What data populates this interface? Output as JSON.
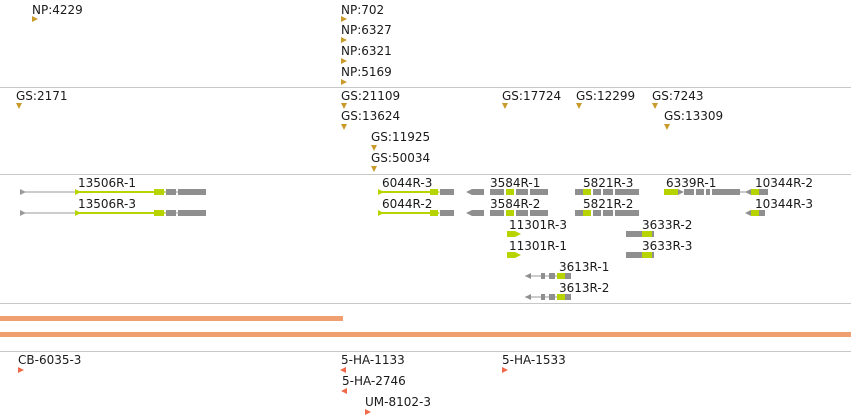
{
  "colors": {
    "np_marker": "#c89b2a",
    "gs_marker": "#c89b2a",
    "ha_marker": "#f06a4a",
    "gene_line": "#9a9a9a",
    "gene_green": "#b7d400",
    "gene_grey": "#8f8f8f",
    "bar": "#f0a070",
    "divider": "#c8c8c8"
  },
  "np_track": {
    "items": [
      {
        "label": "NP:4229"
      },
      {
        "label": "NP:702"
      },
      {
        "label": "NP:6327"
      },
      {
        "label": "NP:6321"
      },
      {
        "label": "NP:5169"
      }
    ]
  },
  "gs_track": {
    "items": [
      {
        "label": "GS:2171"
      },
      {
        "label": "GS:21109"
      },
      {
        "label": "GS:13624"
      },
      {
        "label": "GS:11925"
      },
      {
        "label": "GS:50034"
      },
      {
        "label": "GS:17724"
      },
      {
        "label": "GS:12299"
      },
      {
        "label": "GS:7243"
      },
      {
        "label": "GS:13309"
      }
    ]
  },
  "gene_track": {
    "genes": [
      {
        "label": "13506R-1"
      },
      {
        "label": "13506R-3"
      },
      {
        "label": "6044R-3"
      },
      {
        "label": "6044R-2"
      },
      {
        "label": "3584R-1"
      },
      {
        "label": "3584R-2"
      },
      {
        "label": "11301R-3"
      },
      {
        "label": "11301R-1"
      },
      {
        "label": "3613R-1"
      },
      {
        "label": "3613R-2"
      },
      {
        "label": "5821R-3"
      },
      {
        "label": "5821R-2"
      },
      {
        "label": "3633R-2"
      },
      {
        "label": "3633R-3"
      },
      {
        "label": "6339R-1"
      },
      {
        "label": "10344R-2"
      },
      {
        "label": "10344R-3"
      }
    ]
  },
  "ha_track": {
    "items": [
      {
        "label": "CB-6035-3"
      },
      {
        "label": "5-HA-1133"
      },
      {
        "label": "5-HA-2746"
      },
      {
        "label": "UM-8102-3"
      },
      {
        "label": "5-HA-1533"
      }
    ]
  }
}
